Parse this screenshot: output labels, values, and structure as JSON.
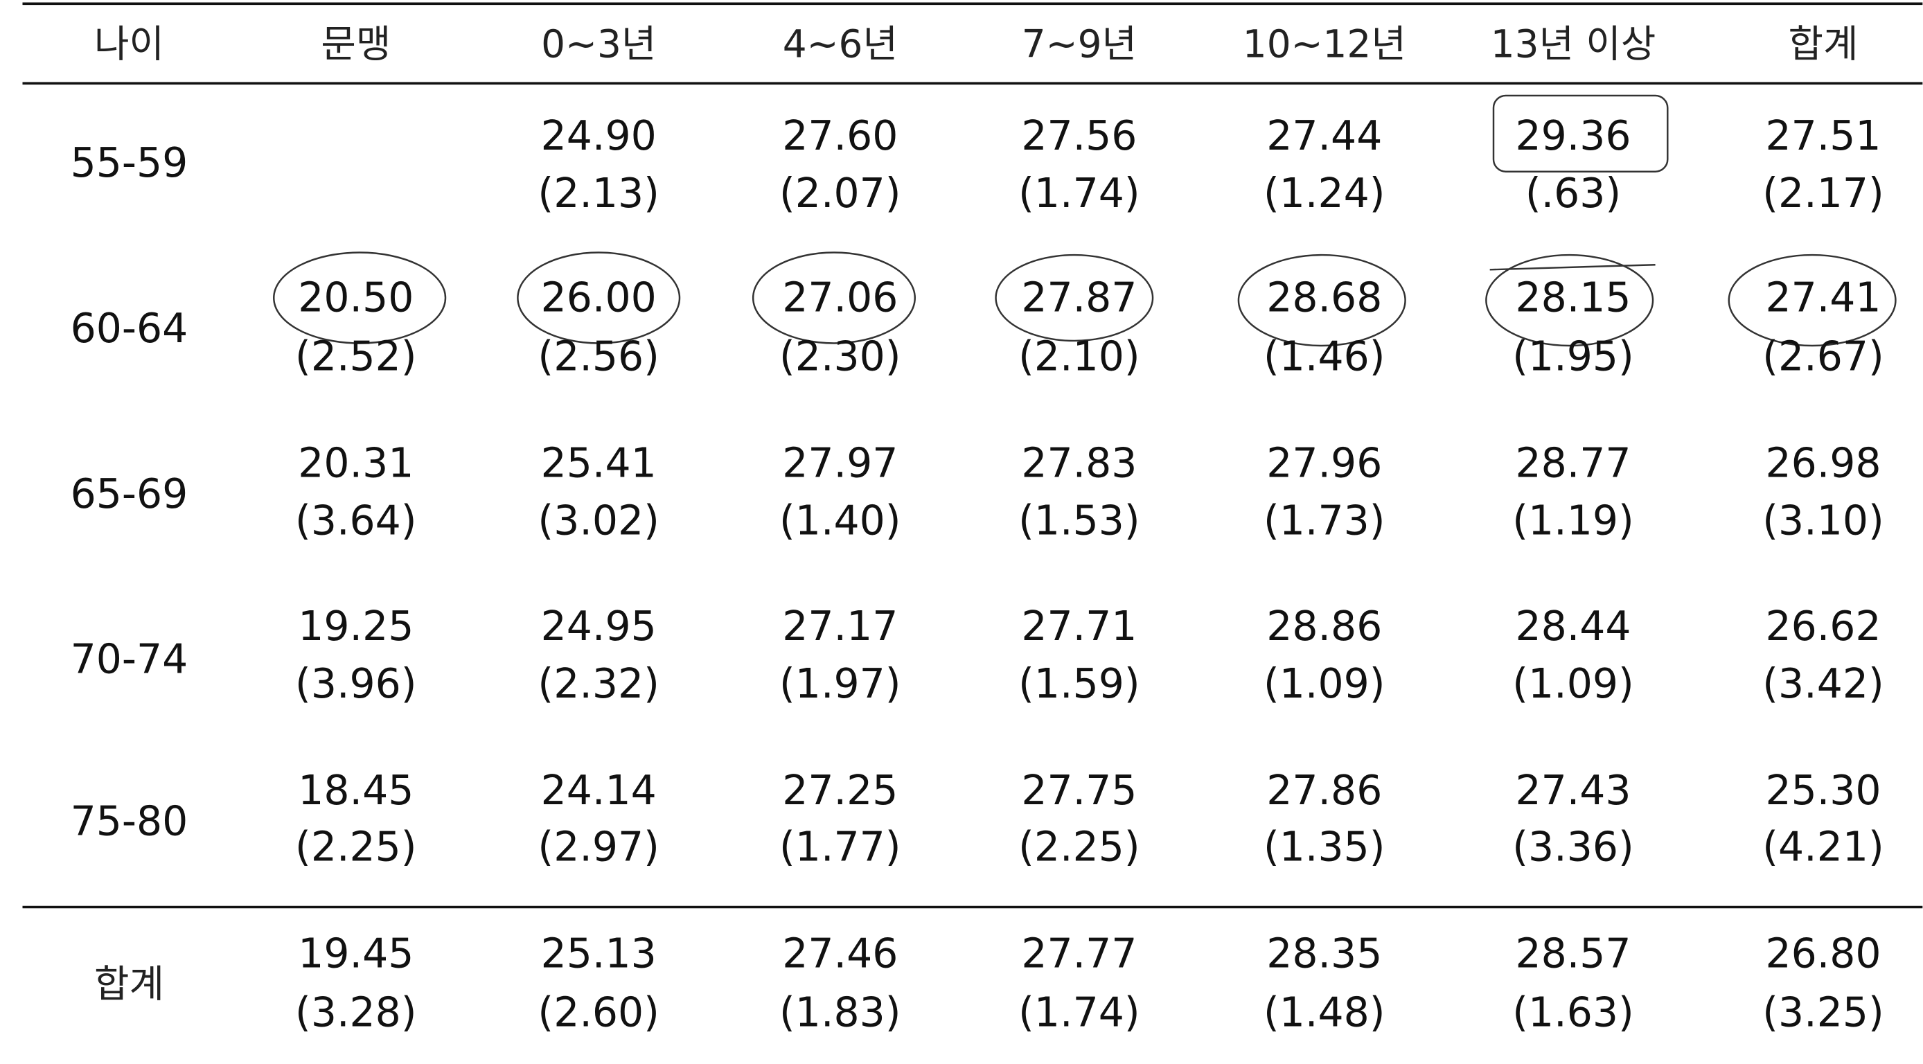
{
  "header": [
    "나이",
    "문맹",
    "0~3년",
    "4~6년",
    "7~9년",
    "10~12년",
    "13년 이상",
    "합계"
  ],
  "rows": [
    {
      "label": "55-59",
      "cells": [
        null,
        {
          "mean": "24.90",
          "sd": "(2.13)"
        },
        {
          "mean": "27.60",
          "sd": "(2.07)"
        },
        {
          "mean": "27.56",
          "sd": "(1.74)"
        },
        {
          "mean": "27.44",
          "sd": "(1.24)"
        },
        {
          "mean": "29.36",
          "sd": "(.63)"
        },
        {
          "mean": "27.51",
          "sd": "(2.17)"
        }
      ]
    },
    {
      "label": "60-64",
      "cells": [
        {
          "mean": "20.50",
          "sd": "(2.52)"
        },
        {
          "mean": "26.00",
          "sd": "(2.56)"
        },
        {
          "mean": "27.06",
          "sd": "(2.30)"
        },
        {
          "mean": "27.87",
          "sd": "(2.10)"
        },
        {
          "mean": "28.68",
          "sd": "(1.46)"
        },
        {
          "mean": "28.15",
          "sd": "(1.95)"
        },
        {
          "mean": "27.41",
          "sd": "(2.67)"
        }
      ]
    },
    {
      "label": "65-69",
      "cells": [
        {
          "mean": "20.31",
          "sd": "(3.64)"
        },
        {
          "mean": "25.41",
          "sd": "(3.02)"
        },
        {
          "mean": "27.97",
          "sd": "(1.40)"
        },
        {
          "mean": "27.83",
          "sd": "(1.53)"
        },
        {
          "mean": "27.96",
          "sd": "(1.73)"
        },
        {
          "mean": "28.77",
          "sd": "(1.19)"
        },
        {
          "mean": "26.98",
          "sd": "(3.10)"
        }
      ]
    },
    {
      "label": "70-74",
      "cells": [
        {
          "mean": "19.25",
          "sd": "(3.96)"
        },
        {
          "mean": "24.95",
          "sd": "(2.32)"
        },
        {
          "mean": "27.17",
          "sd": "(1.97)"
        },
        {
          "mean": "27.71",
          "sd": "(1.59)"
        },
        {
          "mean": "28.86",
          "sd": "(1.09)"
        },
        {
          "mean": "28.44",
          "sd": "(1.09)"
        },
        {
          "mean": "26.62",
          "sd": "(3.42)"
        }
      ]
    },
    {
      "label": "75-80",
      "cells": [
        {
          "mean": "18.45",
          "sd": "(2.25)"
        },
        {
          "mean": "24.14",
          "sd": "(2.97)"
        },
        {
          "mean": "27.25",
          "sd": "(1.77)"
        },
        {
          "mean": "27.75",
          "sd": "(2.25)"
        },
        {
          "mean": "27.86",
          "sd": "(1.35)"
        },
        {
          "mean": "27.43",
          "sd": "(3.36)"
        },
        {
          "mean": "25.30",
          "sd": "(4.21)"
        }
      ]
    }
  ],
  "total": {
    "label": "합계",
    "cells": [
      {
        "mean": "19.45",
        "sd": "(3.28)"
      },
      {
        "mean": "25.13",
        "sd": "(2.60)"
      },
      {
        "mean": "27.46",
        "sd": "(1.83)"
      },
      {
        "mean": "27.77",
        "sd": "(1.74)"
      },
      {
        "mean": "28.35",
        "sd": "(1.48)"
      },
      {
        "mean": "28.57",
        "sd": "(1.63)"
      },
      {
        "mean": "26.80",
        "sd": "(3.25)"
      }
    ]
  }
}
